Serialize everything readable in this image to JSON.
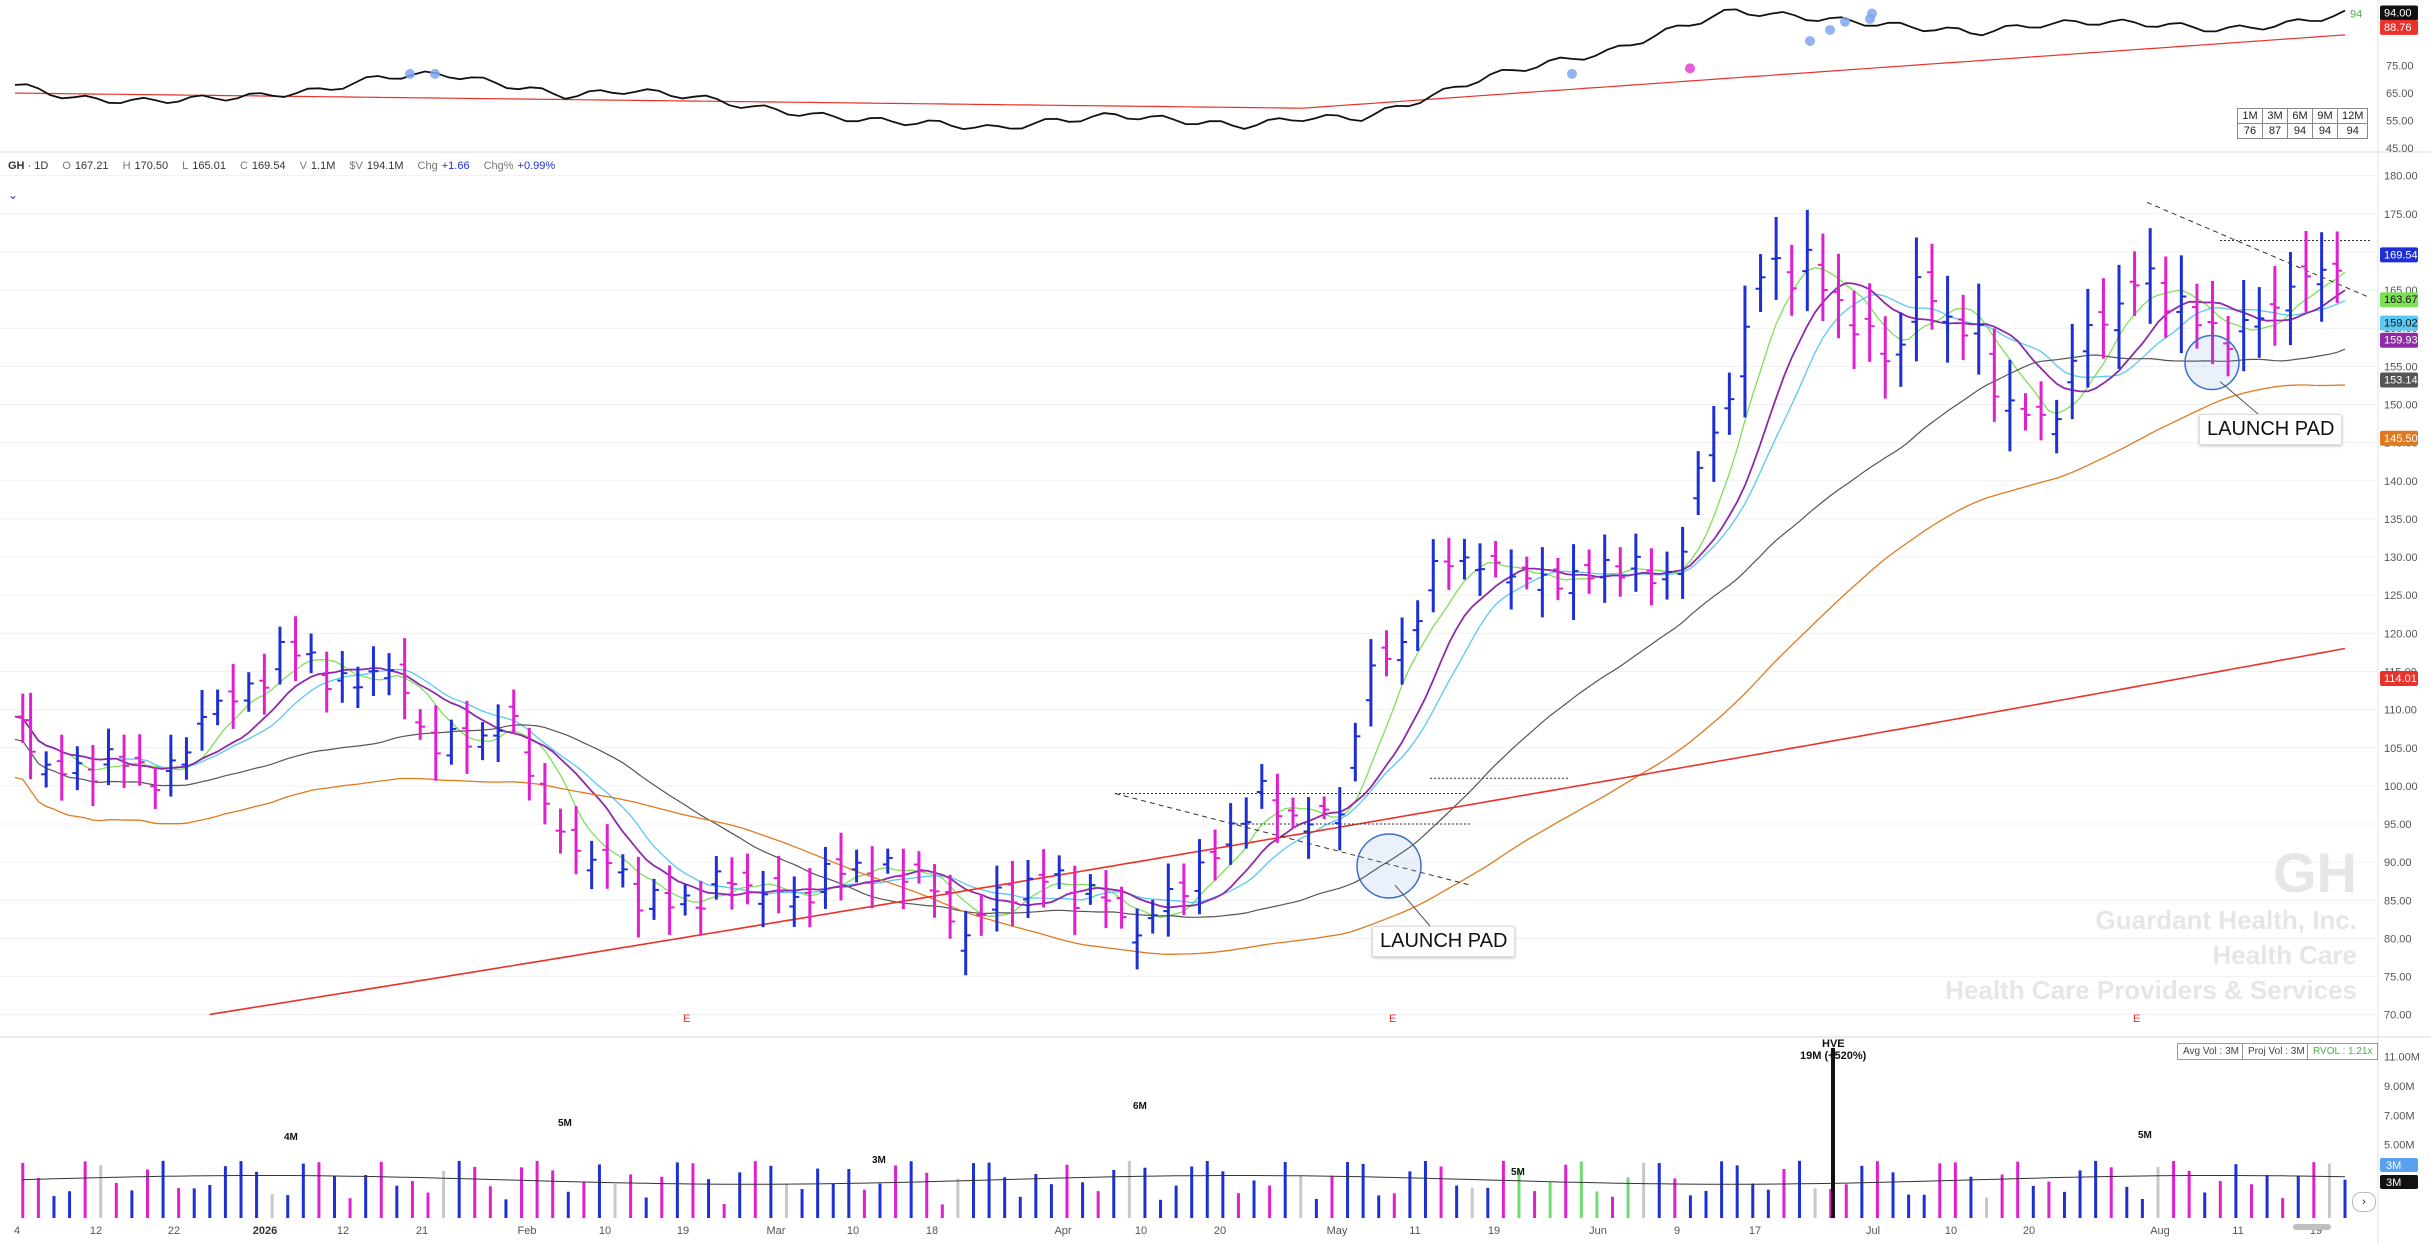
{
  "header": {
    "symbol": "GH",
    "interval": "1D",
    "open_label": "O",
    "open": "167.21",
    "high_label": "H",
    "high": "170.50",
    "low_label": "L",
    "low": "165.01",
    "close_label": "C",
    "close": "169.54",
    "volume_label": "V",
    "volume": "1.1M",
    "dollar_vol_label": "$V",
    "dollar_vol": "194.1M",
    "chg_label": "Chg",
    "chg": "+1.66",
    "chg_pct_label": "Chg%",
    "chg_pct": "+0.99%"
  },
  "watermark": {
    "ticker": "GH",
    "company": "Guardant Health, Inc.",
    "sector": "Health Care",
    "industry": "Health Care Providers & Services"
  },
  "rs_table": {
    "headers": [
      "1M",
      "3M",
      "6M",
      "9M",
      "12M"
    ],
    "values": [
      "76",
      "87",
      "94",
      "94",
      "94"
    ]
  },
  "rs_panel": {
    "y_ticks": [
      "94.00",
      "88.76",
      "75.00",
      "65.00",
      "55.00",
      "45.00"
    ],
    "current_label": "94",
    "rs_value_tag": "94.00",
    "rs_ma_tag": "88.76"
  },
  "volume_panel": {
    "avg_vol": "Avg Vol : 3M",
    "proj_vol": "Proj Vol : 3M",
    "rvol": "RVOL : 1.21x",
    "y_ticks": [
      "11.00M",
      "9.00M",
      "7.00M",
      "5.00M",
      "3M",
      "3M"
    ],
    "peak_labels": [
      "4M",
      "5M",
      "3M",
      "6M",
      "5M",
      "5M"
    ],
    "hve_label": "HVE",
    "hve_value": "19M (+520%)"
  },
  "annotations": {
    "launch_pad_1": "LAUNCH PAD",
    "launch_pad_2": "LAUNCH PAD",
    "earnings_marker": "E"
  },
  "colors": {
    "up_bar": "#1f2fd6",
    "down_bar": "#e01fd0",
    "ma_10": "#7ee055",
    "ma_21": "#5ac8f0",
    "ma_ema": "#8e2aa8",
    "ma_50": "#555555",
    "ma_100": "#e07a20",
    "ma_200": "#e8322a",
    "rs_line": "#111111"
  },
  "chart_data": {
    "type": "candlestick",
    "y_axis": {
      "ticks": [
        "180.00",
        "175.00",
        "170.00",
        "165.00",
        "160.00",
        "155.00",
        "150.00",
        "145.00",
        "140.00",
        "135.00",
        "130.00",
        "125.00",
        "120.00",
        "115.00",
        "110.00",
        "105.00",
        "100.00",
        "95.00",
        "90.00",
        "85.00",
        "80.00",
        "75.00",
        "70.00"
      ],
      "range": [
        68,
        181
      ]
    },
    "x_axis": {
      "ticks": [
        "4",
        "12",
        "22",
        "2026",
        "12",
        "21",
        "Feb",
        "10",
        "19",
        "Mar",
        "10",
        "18",
        "Apr",
        "10",
        "20",
        "May",
        "11",
        "19",
        "Jun",
        "9",
        "17",
        "Jul",
        "10",
        "20",
        "Aug",
        "11",
        "19"
      ]
    },
    "price_tags": {
      "last": "169.54",
      "ma_10": "163.67",
      "ma_ema": "159.93",
      "ma_21": "159.02",
      "ma_50": "153.14",
      "ma_100": "145.50",
      "ma_200": "114.01"
    },
    "series_anchor_closes": [
      108,
      104,
      102,
      101,
      104,
      103,
      102,
      101,
      104,
      112,
      110,
      113,
      116,
      118,
      117,
      112,
      114,
      116,
      113,
      108,
      104,
      107,
      106,
      109,
      104,
      95,
      92,
      91,
      89,
      86,
      85,
      84,
      86,
      87,
      88,
      86,
      85,
      86,
      88,
      90,
      89,
      88,
      90,
      86,
      80,
      83,
      85,
      87,
      88,
      87,
      86,
      85,
      82,
      81,
      86,
      88,
      90,
      95,
      99,
      97,
      96,
      95,
      97,
      112,
      117,
      119,
      125,
      131,
      129,
      128,
      129,
      126,
      127,
      128,
      127,
      130,
      128,
      126,
      132,
      143,
      150,
      160,
      170,
      167,
      168,
      165,
      160,
      158,
      156,
      166,
      163,
      160,
      158,
      150,
      149,
      147,
      153,
      160,
      162,
      165,
      167,
      163,
      161,
      160,
      158,
      162,
      164,
      166,
      168,
      169.54
    ]
  }
}
